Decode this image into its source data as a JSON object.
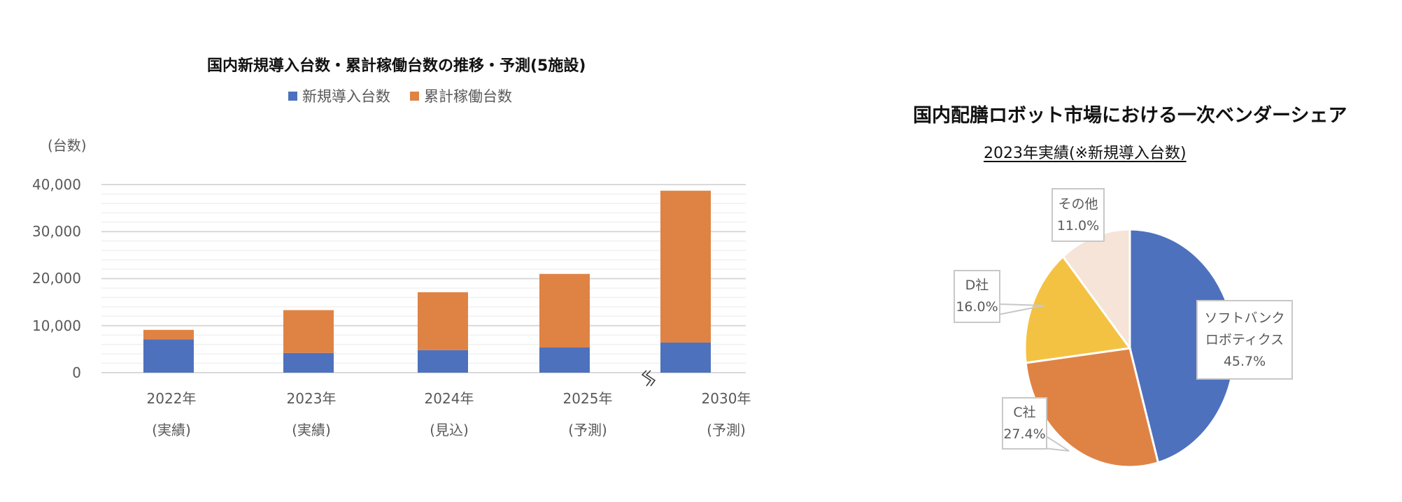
{
  "bar_chart": {
    "title": "国内新規導入台数・累計稼働台数の推移・予測(5施設)",
    "unit_label": "(台数)",
    "legend": [
      {
        "label": "新規導入台数",
        "color": "#4E71BE"
      },
      {
        "label": "累計稼働台数",
        "color": "#DF8344"
      }
    ],
    "y_ticks": [
      "40,000",
      "30,000",
      "20,000",
      "10,000",
      "0"
    ],
    "x_labels": [
      {
        "year": "2022年",
        "note": "(実績)"
      },
      {
        "year": "2023年",
        "note": "(実績)"
      },
      {
        "year": "2024年",
        "note": "(見込)"
      },
      {
        "year": "2025年",
        "note": "(予測)"
      },
      {
        "year": "2030年",
        "note": "(予測)"
      }
    ],
    "axis_break_symbol": "≈"
  },
  "pie_chart": {
    "title": "国内配膳ロボット市場における一次ベンダーシェア",
    "subtitle": "2023年実績(※新規導入台数)",
    "labels": [
      {
        "name": "ソフトバンク",
        "name2": "ロボティクス",
        "pct": "45.7%"
      },
      {
        "name": "C社",
        "pct": "27.4%"
      },
      {
        "name": "D社",
        "pct": "16.0%"
      },
      {
        "name": "その他",
        "pct": "11.0%"
      }
    ]
  },
  "chart_data": [
    {
      "type": "bar",
      "stacked": true,
      "title": "国内新規導入台数・累計稼働台数の推移・予測(5施設)",
      "xlabel": "",
      "ylabel": "(台数)",
      "ylim": [
        0,
        40000
      ],
      "y_major_step": 10000,
      "y_minor_step": 2000,
      "grid": true,
      "legend_position": "top",
      "categories": [
        "2022年(実績)",
        "2023年(実績)",
        "2024年(見込)",
        "2025年(予測)",
        "2030年(予測)"
      ],
      "series": [
        {
          "name": "新規導入台数",
          "color": "#4E71BE",
          "values": [
            7100,
            4200,
            4800,
            5350,
            6400
          ]
        },
        {
          "name": "累計稼働台数",
          "color": "#DF8344",
          "values": [
            2000,
            9100,
            12300,
            15650,
            32300
          ]
        }
      ],
      "stack_totals": [
        9100,
        13300,
        17100,
        21000,
        38700
      ],
      "annotations": [
        "axis break between 2025年 and 2030年"
      ]
    },
    {
      "type": "pie",
      "title": "国内配膳ロボット市場における一次ベンダーシェア",
      "subtitle": "2023年実績(※新規導入台数)",
      "categories": [
        "ソフトバンクロボティクス",
        "C社",
        "D社",
        "その他"
      ],
      "values": [
        45.7,
        27.4,
        16.0,
        11.0
      ],
      "colors": [
        "#4E71BE",
        "#DF8344",
        "#F4C242",
        "#F6E4D8"
      ],
      "start_angle_deg": 0,
      "direction": "clockwise"
    }
  ]
}
